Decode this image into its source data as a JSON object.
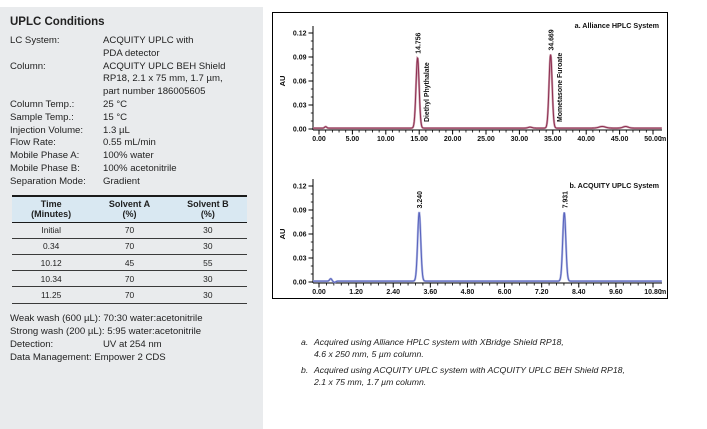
{
  "panel": {
    "title": "UPLC Conditions",
    "conditions": [
      {
        "label": "LC System:",
        "value": "ACQUITY UPLC with\nPDA detector"
      },
      {
        "label": "Column:",
        "value": "ACQUITY UPLC BEH Shield\nRP18, 2.1 x 75 mm, 1.7 µm,\npart number 186005605"
      },
      {
        "label": "Column Temp.:",
        "value": "25 °C"
      },
      {
        "label": "Sample Temp.:",
        "value": "15 °C"
      },
      {
        "label": "Injection Volume:",
        "value": "1.3 µL"
      },
      {
        "label": "Flow Rate:",
        "value": "0.55 mL/min"
      },
      {
        "label": "Mobile Phase A:",
        "value": "100% water"
      },
      {
        "label": "Mobile Phase B:",
        "value": "100% acetonitrile"
      },
      {
        "label": "Separation Mode:",
        "value": "Gradient"
      }
    ],
    "gradient_table": {
      "headers": [
        {
          "line1": "Time",
          "line2": "(Minutes)"
        },
        {
          "line1": "Solvent A",
          "line2": "(%)"
        },
        {
          "line1": "Solvent B",
          "line2": "(%)"
        }
      ],
      "rows": [
        [
          "Initial",
          "70",
          "30"
        ],
        [
          "0.34",
          "70",
          "30"
        ],
        [
          "10.12",
          "45",
          "55"
        ],
        [
          "10.34",
          "70",
          "30"
        ],
        [
          "11.25",
          "70",
          "30"
        ]
      ]
    },
    "footer_rows": [
      {
        "text": "Weak wash (600 µL): 70:30 water:acetonitrile"
      },
      {
        "text": "Strong wash (200 µL): 5:95 water:acetonitrile"
      },
      {
        "label": "Detection:",
        "value": "UV at 254 nm"
      },
      {
        "text": "Data Management: Empower 2 CDS"
      }
    ]
  },
  "chart_data": [
    {
      "type": "line",
      "title": "a. Alliance HPLC System",
      "ylabel": "AU",
      "x_unit": "min",
      "xlim": [
        0,
        50
      ],
      "ylim": [
        0,
        0.12
      ],
      "xtick_values": [
        0,
        5,
        10,
        15,
        20,
        25,
        30,
        35,
        40,
        45,
        50
      ],
      "xtick_labels": [
        "0.00",
        "5.00",
        "10.00",
        "15.00",
        "20.00",
        "25.00",
        "30.00",
        "35.00",
        "40.00",
        "45.00",
        "50.00"
      ],
      "ytick_values": [
        0,
        0.03,
        0.06,
        0.09,
        0.12
      ],
      "ytick_labels": [
        "0.00",
        "0.03",
        "0.06",
        "0.09",
        "0.12"
      ],
      "line_color": "#8e3052",
      "halo_color": "#c793a3",
      "peaks": [
        {
          "retention_time": 14.756,
          "rt_label": "14.756",
          "height_au": 0.088,
          "compound": "Diethyl Phythalate"
        },
        {
          "retention_time": 34.669,
          "rt_label": "34.669",
          "height_au": 0.092,
          "compound": "Mometasone Furoate"
        }
      ]
    },
    {
      "type": "line",
      "title": "b. ACQUITY UPLC System",
      "ylabel": "AU",
      "x_unit": "min",
      "xlim": [
        0,
        10.8
      ],
      "ylim": [
        0,
        0.12
      ],
      "xtick_values": [
        0,
        1.2,
        2.4,
        3.6,
        4.8,
        6.0,
        7.2,
        8.4,
        9.6,
        10.8
      ],
      "xtick_labels": [
        "0.00",
        "1.20",
        "2.40",
        "3.60",
        "4.80",
        "6.00",
        "7.20",
        "8.40",
        "9.60",
        "10.80"
      ],
      "ytick_values": [
        0,
        0.03,
        0.06,
        0.09,
        0.12
      ],
      "ytick_labels": [
        "0.00",
        "0.03",
        "0.06",
        "0.09",
        "0.12"
      ],
      "line_color": "#5964be",
      "halo_color": "#a3acdd",
      "peaks": [
        {
          "retention_time": 3.24,
          "rt_label": "3.240",
          "height_au": 0.086,
          "compound": ""
        },
        {
          "retention_time": 7.931,
          "rt_label": "7.931",
          "height_au": 0.086,
          "compound": ""
        }
      ]
    }
  ],
  "footnotes": [
    {
      "marker": "a.",
      "text": "Acquired using Alliance HPLC system with XBridge Shield RP18,\n4.6 x 250 mm, 5 µm column."
    },
    {
      "marker": "b.",
      "text": "Acquired using ACQUITY UPLC system with ACQUITY UPLC BEH Shield RP18,\n2.1 x 75 mm, 1.7 µm column."
    }
  ]
}
